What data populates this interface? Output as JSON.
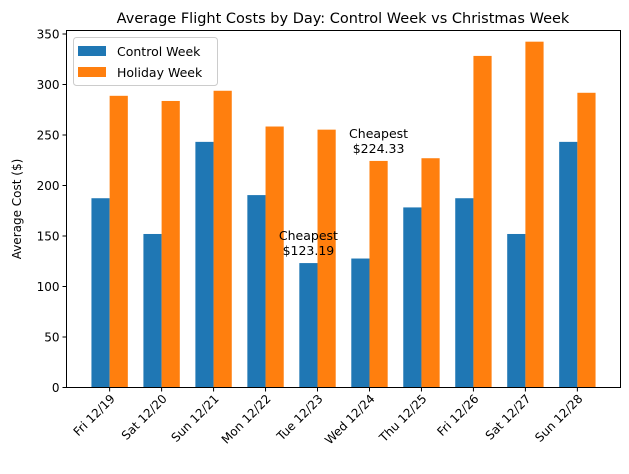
{
  "chart_data": {
    "type": "bar",
    "title": "Average Flight Costs by Day: Control Week vs Christmas Week",
    "xlabel": "",
    "ylabel": "Average Cost ($)",
    "ylim": [
      0,
      350
    ],
    "yticks": [
      0,
      50,
      100,
      150,
      200,
      250,
      300,
      350
    ],
    "grid": false,
    "legend_position": "top-left",
    "categories": [
      "Fri 12/19",
      "Sat 12/20",
      "Sun 12/21",
      "Mon 12/22",
      "Tue 12/23",
      "Wed 12/24",
      "Thu 12/25",
      "Fri 12/26",
      "Sat 12/27",
      "Sun 12/28"
    ],
    "series": [
      {
        "name": "Control Week",
        "color": "#1f77b4",
        "values": [
          187.4,
          152.0,
          243.2,
          190.5,
          123.19,
          127.7,
          178.3,
          187.4,
          152.0,
          243.2
        ]
      },
      {
        "name": "Holiday Week",
        "color": "#ff7f0e",
        "values": [
          288.8,
          283.7,
          293.8,
          258.4,
          255.3,
          224.33,
          227.0,
          328.3,
          342.4,
          291.8
        ]
      }
    ],
    "annotations": [
      {
        "series": 0,
        "category": "Tue 12/23",
        "line1": "Cheapest",
        "line2": "$123.19"
      },
      {
        "series": 1,
        "category": "Wed 12/24",
        "line1": "Cheapest",
        "line2": "$224.33"
      }
    ]
  }
}
